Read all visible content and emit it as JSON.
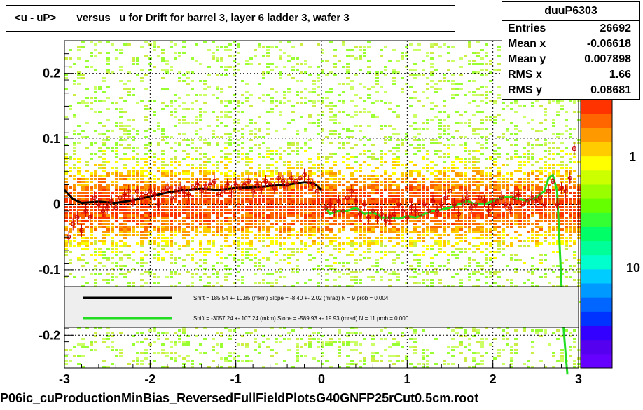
{
  "title": "<u - uP>       versus   u for Drift for barrel 3, layer 6 ladder 3, wafer 3",
  "stats": {
    "name": "duuP6303",
    "rows": [
      {
        "label": "Entries",
        "value": "26692"
      },
      {
        "label": "Mean x",
        "value": "-0.06618"
      },
      {
        "label": "Mean y",
        "value": "0.007898"
      },
      {
        "label": "RMS x",
        "value": "1.66"
      },
      {
        "label": "RMS y",
        "value": "0.08681"
      }
    ]
  },
  "footer": "P06ic_cuProductionMinBias_ReversedFullFieldPlotsG40GNFP25rCut0.5cm.root",
  "colors": {
    "fit1": "#000000",
    "fit2": "#22dd22",
    "points": "#cc0000",
    "legend_bg": "#eeeeee"
  },
  "chart_data": {
    "type": "scatter",
    "xlim": [
      -3,
      3
    ],
    "ylim": [
      -0.25,
      0.25
    ],
    "x_ticks": [
      -3,
      -2,
      -1,
      0,
      1,
      2,
      3
    ],
    "y_ticks": [
      -0.2,
      -0.1,
      0,
      0.1,
      0.2
    ],
    "x_tick_labels": [
      "-3",
      "-2",
      "-1",
      "0",
      "1",
      "2",
      "3"
    ],
    "y_tick_labels": [
      "-0.2",
      "-0.1",
      "0",
      "0.1",
      "0.2"
    ],
    "colorbar_labels": [
      "1",
      "10"
    ],
    "grid": true,
    "legend": [
      {
        "text": "Shift =   185.54 +- 10.85 (mkm) Slope =    -8.40 +- 2.02 (mrad)  N = 9 prob = 0.004",
        "color": "#000000"
      },
      {
        "text": "Shift = -3057.24 +- 107.24 (mkm) Slope =  -589.93 +- 19.93 (mrad)  N = 11 prob = 0.000",
        "color": "#22dd22"
      }
    ],
    "profile_points": {
      "x": [
        -2.95,
        -2.9,
        -2.85,
        -2.8,
        -2.75,
        -2.7,
        -2.65,
        -2.6,
        -2.55,
        -2.5,
        -2.45,
        -2.4,
        -2.35,
        -2.3,
        -2.25,
        -2.2,
        -2.15,
        -2.1,
        -2.05,
        -2.0,
        -1.95,
        -1.9,
        -1.85,
        -1.8,
        -1.75,
        -1.7,
        -1.65,
        -1.6,
        -1.55,
        -1.5,
        -1.45,
        -1.4,
        -1.35,
        -1.3,
        -1.25,
        -1.2,
        -1.15,
        -1.1,
        -1.05,
        -1.0,
        -0.95,
        -0.9,
        -0.85,
        -0.8,
        -0.75,
        -0.7,
        -0.65,
        -0.6,
        -0.55,
        -0.5,
        -0.45,
        -0.4,
        -0.35,
        -0.3,
        -0.25,
        -0.2,
        -0.15,
        -0.1,
        -0.05,
        0.05,
        0.1,
        0.15,
        0.2,
        0.25,
        0.3,
        0.35,
        0.4,
        0.45,
        0.5,
        0.55,
        0.6,
        0.65,
        0.7,
        0.75,
        0.8,
        0.85,
        0.9,
        0.95,
        1.0,
        1.05,
        1.1,
        1.15,
        1.2,
        1.25,
        1.3,
        1.35,
        1.4,
        1.45,
        1.5,
        1.55,
        1.6,
        1.65,
        1.7,
        1.75,
        1.8,
        1.85,
        1.9,
        1.95,
        2.0,
        2.05,
        2.1,
        2.15,
        2.2,
        2.25,
        2.3,
        2.35,
        2.4,
        2.45,
        2.5,
        2.55,
        2.6,
        2.65,
        2.7,
        2.75,
        2.8,
        2.85,
        2.9,
        2.95
      ],
      "y": [
        -0.05,
        -0.03,
        -0.02,
        -0.04,
        -0.01,
        -0.02,
        0.01,
        0.0,
        -0.01,
        -0.005,
        0.005,
        -0.005,
        0.01,
        0.015,
        0.02,
        0.005,
        0.02,
        0.01,
        0.015,
        0.02,
        0.015,
        0.0,
        0.02,
        0.025,
        0.01,
        0.02,
        0.025,
        0.02,
        0.015,
        0.025,
        0.03,
        0.02,
        0.025,
        0.03,
        0.035,
        0.015,
        0.02,
        0.03,
        0.02,
        0.03,
        0.025,
        0.03,
        0.035,
        0.02,
        0.03,
        0.025,
        0.035,
        0.03,
        0.025,
        0.04,
        0.035,
        0.03,
        0.04,
        0.035,
        0.04,
        0.045,
        0.035,
        0.03,
        0.02,
        -0.005,
        0.0,
        -0.01,
        0.005,
        -0.01,
        0.01,
        0.02,
        0.005,
        -0.015,
        0.0,
        -0.02,
        -0.01,
        -0.02,
        -0.015,
        -0.025,
        -0.02,
        -0.015,
        0.0,
        -0.01,
        -0.02,
        -0.005,
        -0.01,
        -0.015,
        0.0,
        -0.01,
        0.005,
        -0.01,
        0.0,
        0.01,
        0.02,
        0.0,
        -0.015,
        0.005,
        0.01,
        -0.005,
        0.0,
        0.01,
        0.005,
        -0.01,
        0.0,
        0.005,
        0.01,
        0.0,
        -0.005,
        0.01,
        0.015,
        0.0,
        0.005,
        0.01,
        0.005,
        0.01,
        0.0,
        0.02,
        0.035,
        0.0,
        0.025,
        0.02,
        0.04,
        0.085
      ]
    },
    "fit1_curve": {
      "x": [
        -3.0,
        -2.9,
        -2.8,
        -2.7,
        -2.6,
        -2.5,
        -2.4,
        -2.2,
        -2.0,
        -1.8,
        -1.6,
        -1.4,
        -1.2,
        -1.0,
        -0.8,
        -0.6,
        -0.4,
        -0.2,
        -0.1,
        -0.05,
        0.0
      ],
      "y": [
        0.022,
        0.008,
        0.002,
        0.003,
        0.004,
        0.003,
        0.002,
        0.006,
        0.012,
        0.018,
        0.022,
        0.024,
        0.022,
        0.025,
        0.026,
        0.028,
        0.03,
        0.034,
        0.033,
        0.028,
        0.022
      ]
    },
    "fit2_curve": {
      "x": [
        0.05,
        0.1,
        0.2,
        0.3,
        0.4,
        0.5,
        0.6,
        0.7,
        0.8,
        0.9,
        1.0,
        1.1,
        1.2,
        1.3,
        1.4,
        1.5,
        1.6,
        1.7,
        1.8,
        1.9,
        2.0,
        2.1,
        2.2,
        2.3,
        2.4,
        2.5,
        2.6,
        2.65,
        2.7,
        2.75,
        2.8,
        2.82,
        2.85,
        2.87
      ],
      "y": [
        -0.005,
        -0.015,
        -0.01,
        -0.01,
        -0.005,
        -0.015,
        -0.012,
        -0.02,
        -0.02,
        -0.022,
        -0.018,
        -0.02,
        -0.015,
        -0.01,
        -0.008,
        -0.005,
        0.0,
        0.005,
        0.0,
        0.0,
        0.005,
        0.01,
        0.012,
        0.008,
        0.005,
        0.01,
        0.02,
        0.04,
        0.045,
        0.02,
        -0.12,
        -0.18,
        -0.23,
        -0.26
      ]
    }
  }
}
